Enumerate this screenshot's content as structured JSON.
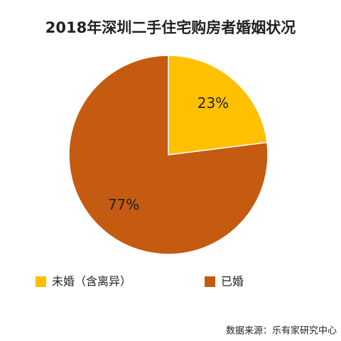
{
  "chart_data": {
    "type": "pie",
    "title": "2018年深圳二手住宅购房者婚姻状况",
    "categories": [
      "未婚（含离异）",
      "已婚"
    ],
    "values": [
      23,
      77
    ],
    "value_labels": [
      "23%",
      "77%"
    ],
    "colors": [
      "#ffc000",
      "#c55a11"
    ],
    "source": "数据来源：乐有家研究中心"
  }
}
